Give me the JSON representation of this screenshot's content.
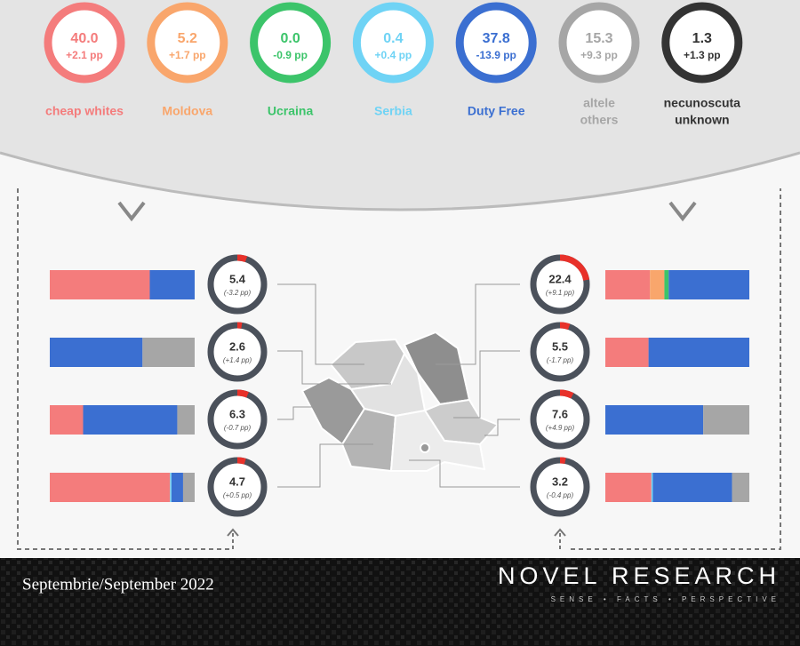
{
  "categories": [
    {
      "value": "40.0",
      "change": "+2.1 pp",
      "label": [
        "cheap whites"
      ],
      "color": "#f47c7c"
    },
    {
      "value": "5.2",
      "change": "+1.7 pp",
      "label": [
        "Moldova"
      ],
      "color": "#f9a66c"
    },
    {
      "value": "0.0",
      "change": "-0.9 pp",
      "label": [
        "Ucraina"
      ],
      "color": "#3cc46a"
    },
    {
      "value": "0.4",
      "change": "+0.4 pp",
      "label": [
        "Serbia"
      ],
      "color": "#6fd3f5"
    },
    {
      "value": "37.8",
      "change": "-13.9 pp",
      "label": [
        "Duty Free"
      ],
      "color": "#3b6fd1"
    },
    {
      "value": "15.3",
      "change": "+9.3 pp",
      "label": [
        "altele",
        "others"
      ],
      "color": "#a6a6a6"
    },
    {
      "value": "1.3",
      "change": "+1.3 pp",
      "label": [
        "necunoscuta",
        "unknown"
      ],
      "color": "#333333"
    }
  ],
  "regions": [
    {
      "side": "left",
      "value": 5.4,
      "change": "(-3.2 pp)",
      "shares": [
        69,
        0,
        0,
        0,
        31,
        0,
        0
      ]
    },
    {
      "side": "left",
      "value": 2.6,
      "change": "(+1.4 pp)",
      "shares": [
        0,
        0,
        0,
        0,
        64,
        36,
        0
      ]
    },
    {
      "side": "left",
      "value": 6.3,
      "change": "(-0.7 pp)",
      "shares": [
        23,
        0,
        0,
        0,
        65,
        12,
        0
      ]
    },
    {
      "side": "left",
      "value": 4.7,
      "change": "(+0.5 pp)",
      "shares": [
        83,
        0,
        0,
        1,
        8,
        8,
        0
      ]
    },
    {
      "side": "right",
      "value": 22.4,
      "change": "(+9.1 pp)",
      "shares": [
        31,
        10,
        3,
        0,
        56,
        0,
        0
      ]
    },
    {
      "side": "right",
      "value": 5.5,
      "change": "(-1.7 pp)",
      "shares": [
        30,
        0,
        0,
        0,
        70,
        0,
        0
      ]
    },
    {
      "side": "right",
      "value": 7.6,
      "change": "(+4.9 pp)",
      "shares": [
        0,
        0,
        0,
        0,
        68,
        32,
        0
      ]
    },
    {
      "side": "right",
      "value": 3.2,
      "change": "(-0.4 pp)",
      "shares": [
        32,
        0,
        0,
        1,
        55,
        12,
        0
      ]
    }
  ],
  "footer": {
    "date": "Septembrie/September 2022",
    "brand": "NOVEL RESEARCH",
    "tagline": "SENSE • FACTS • PERSPECTIVE"
  }
}
